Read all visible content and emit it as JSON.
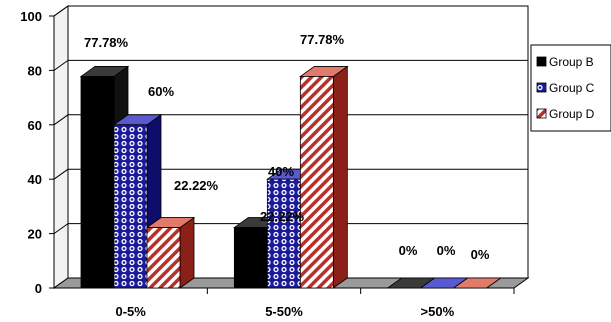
{
  "chart_data": {
    "type": "bar",
    "style": "3d-clustered",
    "categories": [
      "0-5%",
      "5-50%",
      ">50%"
    ],
    "series": [
      {
        "name": "Group B",
        "values": [
          77.78,
          22.22,
          0
        ],
        "labels": [
          "77.78%",
          "22.22%",
          "0%"
        ],
        "color": "#000000",
        "pattern": "solid"
      },
      {
        "name": "Group C",
        "values": [
          60,
          40,
          0
        ],
        "labels": [
          "60%",
          "40%",
          "0%"
        ],
        "color": "#1a1a9a",
        "pattern": "dots"
      },
      {
        "name": "Group D",
        "values": [
          22.22,
          77.78,
          0
        ],
        "labels": [
          "22.22%",
          "77.78%",
          "0%"
        ],
        "color": "#b8302a",
        "pattern": "diagonal-stripes"
      }
    ],
    "yticks": [
      "0",
      "20",
      "40",
      "60",
      "80",
      "100"
    ],
    "ylim": [
      0,
      100
    ],
    "grid": true,
    "legend_position": "right",
    "title": "",
    "xlabel": "",
    "ylabel": ""
  }
}
